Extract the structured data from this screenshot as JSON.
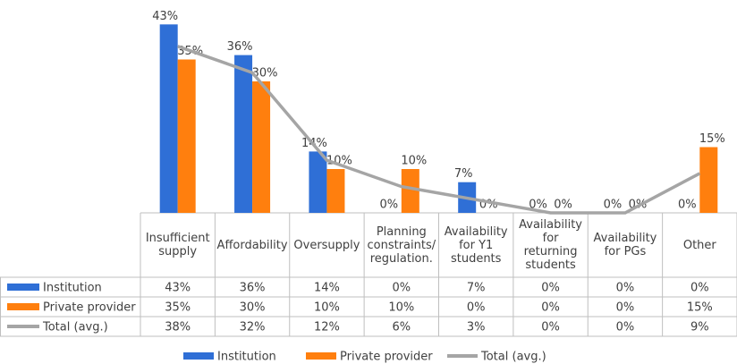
{
  "chart_data": {
    "type": "bar",
    "categories": [
      "Insufficient supply",
      "Affordability",
      "Oversupply",
      "Planning constraints/ regulation.",
      "Availability for Y1 students",
      "Availability for returning students",
      "Availability for PGs",
      "Other"
    ],
    "ylim": [
      0,
      50
    ],
    "series": [
      {
        "name": "Institution",
        "type": "bar",
        "color": "#2f6fd6",
        "values": [
          43,
          36,
          14,
          0,
          7,
          0,
          0,
          0
        ],
        "value_labels": [
          "43%",
          "36%",
          "14%",
          "0%",
          "7%",
          "0%",
          "0%",
          "0%"
        ]
      },
      {
        "name": "Private provider",
        "type": "bar",
        "color": "#ff7f0e",
        "values": [
          35,
          30,
          10,
          10,
          0,
          0,
          0,
          15
        ],
        "value_labels": [
          "35%",
          "30%",
          "10%",
          "10%",
          "0%",
          "0%",
          "0%",
          "15%"
        ]
      },
      {
        "name": "Total (avg.)",
        "type": "line",
        "color": "#a5a5a5",
        "values": [
          38,
          32,
          12,
          6,
          3,
          0,
          0,
          9
        ],
        "value_labels": [
          "38%",
          "32%",
          "12%",
          "6%",
          "3%",
          "0%",
          "0%",
          "9%"
        ]
      }
    ]
  }
}
